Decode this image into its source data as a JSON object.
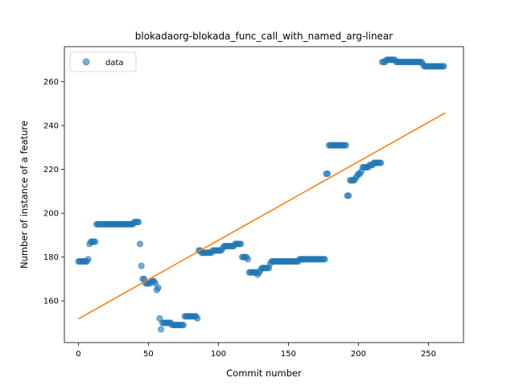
{
  "chart_data": {
    "type": "scatter",
    "title": "blokadaorg-blokada_func_call_with_named_arg-linear",
    "xlabel": "Commit number",
    "ylabel": "Number of instance of a feature",
    "xlim": [
      -10,
      275
    ],
    "ylim": [
      141,
      276
    ],
    "xticks": [
      0,
      50,
      100,
      150,
      200,
      250
    ],
    "yticks": [
      160,
      180,
      200,
      220,
      240,
      260
    ],
    "grid": false,
    "legend": {
      "placement": "top-left",
      "entries": [
        "data"
      ]
    },
    "colors": {
      "scatter": "#1f77b4",
      "fit_line": "#ff7f0e"
    },
    "series": [
      {
        "name": "data",
        "kind": "scatter",
        "points": [
          [
            0,
            178
          ],
          [
            1,
            178
          ],
          [
            2,
            178
          ],
          [
            3,
            178
          ],
          [
            4,
            178
          ],
          [
            5,
            178
          ],
          [
            6,
            178
          ],
          [
            7,
            179
          ],
          [
            8,
            186
          ],
          [
            9,
            187
          ],
          [
            10,
            187
          ],
          [
            11,
            187
          ],
          [
            12,
            187
          ],
          [
            13,
            195
          ],
          [
            14,
            195
          ],
          [
            15,
            195
          ],
          [
            16,
            195
          ],
          [
            17,
            195
          ],
          [
            18,
            195
          ],
          [
            19,
            195
          ],
          [
            20,
            195
          ],
          [
            21,
            195
          ],
          [
            22,
            195
          ],
          [
            23,
            195
          ],
          [
            24,
            195
          ],
          [
            25,
            195
          ],
          [
            26,
            195
          ],
          [
            27,
            195
          ],
          [
            28,
            195
          ],
          [
            29,
            195
          ],
          [
            30,
            195
          ],
          [
            31,
            195
          ],
          [
            32,
            195
          ],
          [
            33,
            195
          ],
          [
            34,
            195
          ],
          [
            35,
            195
          ],
          [
            36,
            195
          ],
          [
            37,
            195
          ],
          [
            38,
            195
          ],
          [
            39,
            195
          ],
          [
            40,
            196
          ],
          [
            41,
            196
          ],
          [
            42,
            196
          ],
          [
            43,
            196
          ],
          [
            44,
            186
          ],
          [
            45,
            176
          ],
          [
            46,
            170
          ],
          [
            47,
            170
          ],
          [
            48,
            168
          ],
          [
            49,
            168
          ],
          [
            50,
            168
          ],
          [
            51,
            168
          ],
          [
            52,
            169
          ],
          [
            53,
            169
          ],
          [
            54,
            169
          ],
          [
            55,
            168
          ],
          [
            56,
            165
          ],
          [
            57,
            166
          ],
          [
            58,
            152
          ],
          [
            59,
            147
          ],
          [
            60,
            150
          ],
          [
            61,
            150
          ],
          [
            62,
            150
          ],
          [
            63,
            150
          ],
          [
            64,
            150
          ],
          [
            65,
            150
          ],
          [
            66,
            150
          ],
          [
            67,
            149
          ],
          [
            68,
            149
          ],
          [
            69,
            149
          ],
          [
            70,
            149
          ],
          [
            71,
            149
          ],
          [
            72,
            149
          ],
          [
            73,
            149
          ],
          [
            74,
            149
          ],
          [
            75,
            149
          ],
          [
            76,
            153
          ],
          [
            77,
            153
          ],
          [
            78,
            153
          ],
          [
            79,
            153
          ],
          [
            80,
            153
          ],
          [
            81,
            153
          ],
          [
            82,
            153
          ],
          [
            83,
            153
          ],
          [
            84,
            153
          ],
          [
            85,
            152
          ],
          [
            86,
            183
          ],
          [
            87,
            183
          ],
          [
            88,
            182
          ],
          [
            89,
            182
          ],
          [
            90,
            182
          ],
          [
            91,
            182
          ],
          [
            92,
            182
          ],
          [
            93,
            182
          ],
          [
            94,
            182
          ],
          [
            95,
            182
          ],
          [
            96,
            183
          ],
          [
            97,
            183
          ],
          [
            98,
            183
          ],
          [
            99,
            183
          ],
          [
            100,
            183
          ],
          [
            101,
            183
          ],
          [
            102,
            183
          ],
          [
            103,
            184
          ],
          [
            104,
            185
          ],
          [
            105,
            185
          ],
          [
            106,
            185
          ],
          [
            107,
            185
          ],
          [
            108,
            185
          ],
          [
            109,
            185
          ],
          [
            110,
            185
          ],
          [
            111,
            185
          ],
          [
            112,
            186
          ],
          [
            113,
            186
          ],
          [
            114,
            186
          ],
          [
            115,
            186
          ],
          [
            116,
            186
          ],
          [
            117,
            180
          ],
          [
            118,
            180
          ],
          [
            119,
            180
          ],
          [
            120,
            180
          ],
          [
            121,
            179
          ],
          [
            122,
            173
          ],
          [
            123,
            173
          ],
          [
            124,
            173
          ],
          [
            125,
            173
          ],
          [
            126,
            173
          ],
          [
            127,
            173
          ],
          [
            128,
            172
          ],
          [
            129,
            173
          ],
          [
            130,
            174
          ],
          [
            131,
            175
          ],
          [
            132,
            175
          ],
          [
            133,
            175
          ],
          [
            134,
            175
          ],
          [
            135,
            175
          ],
          [
            136,
            175
          ],
          [
            137,
            177
          ],
          [
            138,
            178
          ],
          [
            139,
            178
          ],
          [
            140,
            178
          ],
          [
            141,
            178
          ],
          [
            142,
            178
          ],
          [
            143,
            178
          ],
          [
            144,
            178
          ],
          [
            145,
            178
          ],
          [
            146,
            178
          ],
          [
            147,
            178
          ],
          [
            148,
            178
          ],
          [
            149,
            178
          ],
          [
            150,
            178
          ],
          [
            151,
            178
          ],
          [
            152,
            178
          ],
          [
            153,
            178
          ],
          [
            154,
            178
          ],
          [
            155,
            178
          ],
          [
            156,
            178
          ],
          [
            157,
            178
          ],
          [
            158,
            179
          ],
          [
            159,
            179
          ],
          [
            160,
            179
          ],
          [
            161,
            179
          ],
          [
            162,
            179
          ],
          [
            163,
            179
          ],
          [
            164,
            179
          ],
          [
            165,
            179
          ],
          [
            166,
            179
          ],
          [
            167,
            179
          ],
          [
            168,
            179
          ],
          [
            169,
            179
          ],
          [
            170,
            179
          ],
          [
            171,
            179
          ],
          [
            172,
            179
          ],
          [
            173,
            179
          ],
          [
            174,
            179
          ],
          [
            175,
            179
          ],
          [
            176,
            179
          ],
          [
            177,
            218
          ],
          [
            178,
            218
          ],
          [
            179,
            231
          ],
          [
            180,
            231
          ],
          [
            181,
            231
          ],
          [
            182,
            231
          ],
          [
            183,
            231
          ],
          [
            184,
            231
          ],
          [
            185,
            231
          ],
          [
            186,
            231
          ],
          [
            187,
            231
          ],
          [
            188,
            231
          ],
          [
            189,
            231
          ],
          [
            190,
            231
          ],
          [
            191,
            231
          ],
          [
            192,
            208
          ],
          [
            193,
            208
          ],
          [
            194,
            215
          ],
          [
            195,
            215
          ],
          [
            196,
            215
          ],
          [
            197,
            215
          ],
          [
            198,
            216
          ],
          [
            199,
            217
          ],
          [
            200,
            218
          ],
          [
            201,
            218
          ],
          [
            202,
            219
          ],
          [
            203,
            221
          ],
          [
            204,
            221
          ],
          [
            205,
            221
          ],
          [
            206,
            221
          ],
          [
            207,
            221
          ],
          [
            208,
            222
          ],
          [
            209,
            222
          ],
          [
            210,
            222
          ],
          [
            211,
            223
          ],
          [
            212,
            223
          ],
          [
            213,
            223
          ],
          [
            214,
            223
          ],
          [
            215,
            223
          ],
          [
            216,
            223
          ],
          [
            217,
            269
          ],
          [
            218,
            269
          ],
          [
            219,
            269
          ],
          [
            220,
            270
          ],
          [
            221,
            270
          ],
          [
            222,
            270
          ],
          [
            223,
            270
          ],
          [
            224,
            270
          ],
          [
            225,
            270
          ],
          [
            226,
            270
          ],
          [
            227,
            269
          ],
          [
            228,
            269
          ],
          [
            229,
            269
          ],
          [
            230,
            269
          ],
          [
            231,
            269
          ],
          [
            232,
            269
          ],
          [
            233,
            269
          ],
          [
            234,
            269
          ],
          [
            235,
            269
          ],
          [
            236,
            269
          ],
          [
            237,
            269
          ],
          [
            238,
            269
          ],
          [
            239,
            269
          ],
          [
            240,
            269
          ],
          [
            241,
            269
          ],
          [
            242,
            269
          ],
          [
            243,
            269
          ],
          [
            244,
            269
          ],
          [
            245,
            269
          ],
          [
            246,
            268
          ],
          [
            247,
            267
          ],
          [
            248,
            267
          ],
          [
            249,
            267
          ],
          [
            250,
            267
          ],
          [
            251,
            267
          ],
          [
            252,
            267
          ],
          [
            253,
            267
          ],
          [
            254,
            267
          ],
          [
            255,
            267
          ],
          [
            256,
            267
          ],
          [
            257,
            267
          ],
          [
            258,
            267
          ],
          [
            259,
            267
          ],
          [
            260,
            267
          ],
          [
            261,
            267
          ]
        ]
      },
      {
        "kind": "line",
        "x": [
          0,
          262
        ],
        "y": [
          151.8,
          245.8
        ]
      }
    ]
  }
}
